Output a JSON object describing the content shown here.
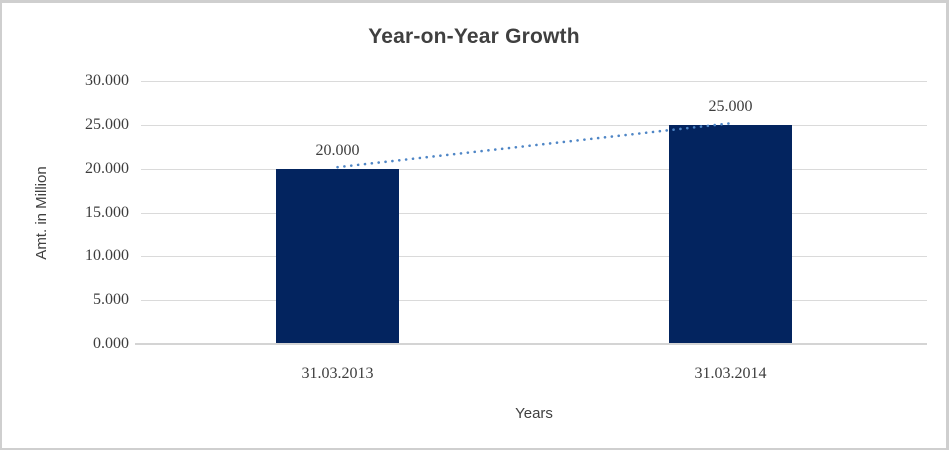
{
  "chart_data": {
    "type": "bar",
    "title": "Year-on-Year Growth",
    "xlabel": "Years",
    "ylabel": "Amt. in Million",
    "categories": [
      "31.03.2013",
      "31.03.2014"
    ],
    "values": [
      20.0,
      25.0
    ],
    "data_labels": [
      "20.000",
      "25.000"
    ],
    "y_ticks": [
      "0.000",
      "5.000",
      "10.000",
      "15.000",
      "20.000",
      "25.000",
      "30.000"
    ],
    "ylim": [
      0,
      30
    ],
    "grid": true,
    "legend": false,
    "bar_color": "#03245f",
    "trendline": {
      "style": "dotted",
      "color": "#4f86c6",
      "values": [
        20.0,
        25.0
      ]
    }
  },
  "colors": {
    "gridline": "#dadada",
    "axis_line": "#d4d4d4",
    "title_text": "#404040",
    "tick_text": "#3d3d3d",
    "frame_border": "#cfcfcf",
    "background": "#ffffff"
  }
}
